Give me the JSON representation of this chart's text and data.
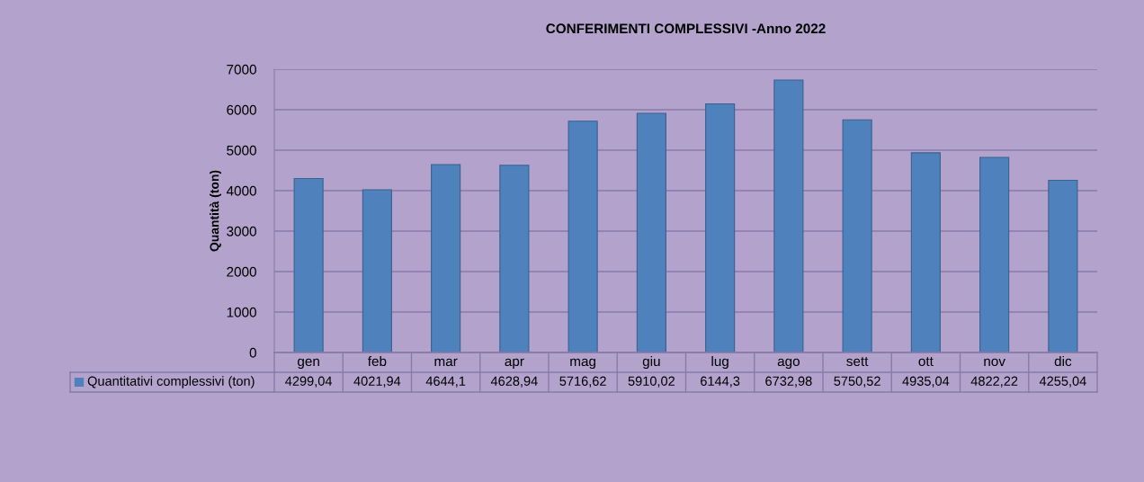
{
  "chart_data": {
    "type": "bar",
    "title": "CONFERIMENTI COMPLESSIVI -Anno 2022",
    "ylabel": "Quantità (ton)",
    "categories": [
      "gen",
      "feb",
      "mar",
      "apr",
      "mag",
      "giu",
      "lug",
      "ago",
      "sett",
      "ott",
      "nov",
      "dic"
    ],
    "series": [
      {
        "name": "Quantitativi complessivi (ton)",
        "color": "#4f81bd",
        "values": [
          4299.04,
          4021.94,
          4644.1,
          4628.94,
          5716.62,
          5910.02,
          6144.3,
          6732.98,
          5750.52,
          4935.04,
          4822.22,
          4255.04
        ],
        "value_labels": [
          "4299,04",
          "4021,94",
          "4644,1",
          "4628,94",
          "5716,62",
          "5910,02",
          "6144,3",
          "6732,98",
          "5750,52",
          "4935,04",
          "4822,22",
          "4255,04"
        ]
      }
    ],
    "ylim": [
      0,
      7000
    ],
    "yticks": [
      0,
      1000,
      2000,
      3000,
      4000,
      5000,
      6000,
      7000
    ],
    "grid": "y",
    "legend": "bottom"
  }
}
